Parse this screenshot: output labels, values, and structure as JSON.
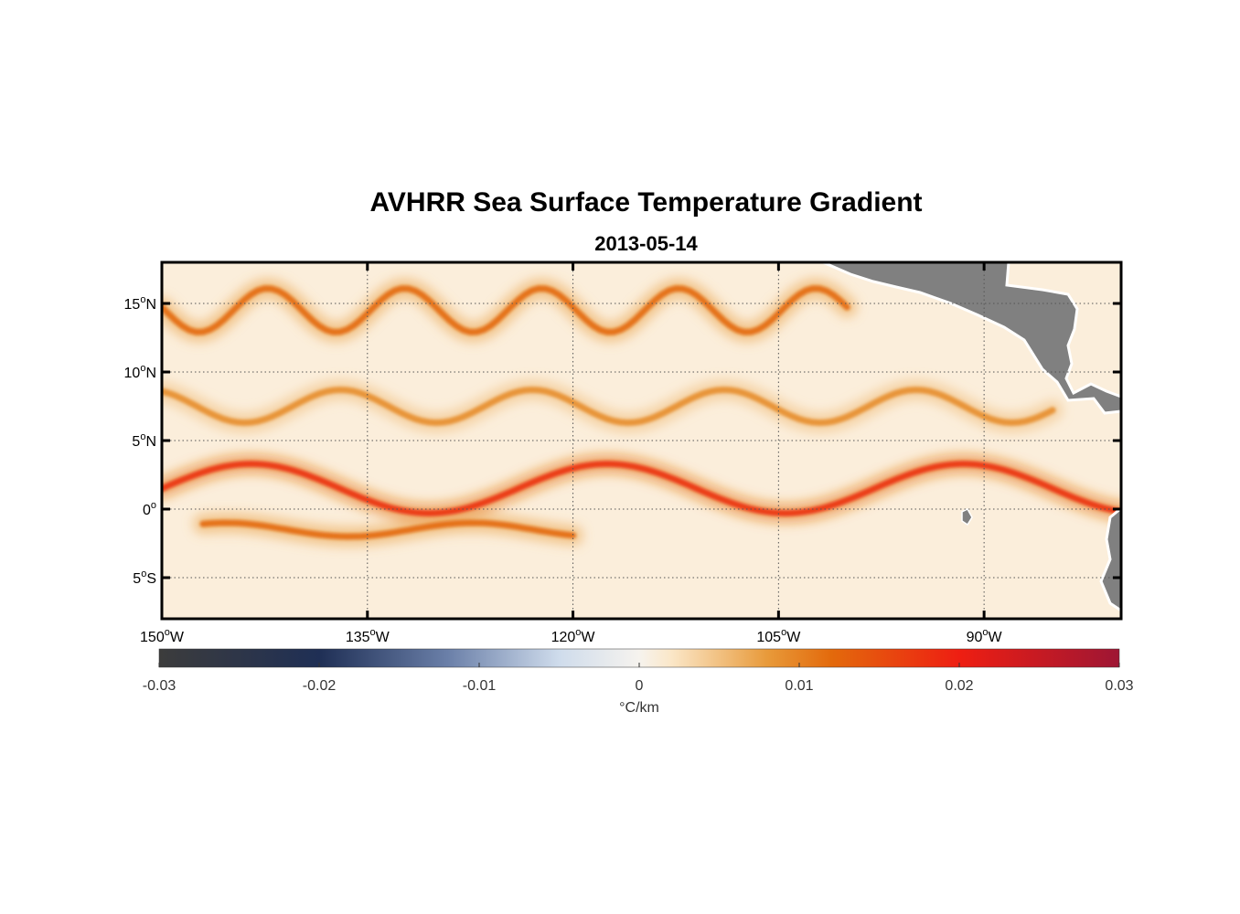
{
  "chart_data": {
    "type": "heatmap",
    "title": "AVHRR Sea Surface Temperature Gradient",
    "subtitle": "2013-05-14",
    "x_ticks": [
      {
        "value": -150,
        "label": "150",
        "suffix": "W"
      },
      {
        "value": -135,
        "label": "135",
        "suffix": "W"
      },
      {
        "value": -120,
        "label": "120",
        "suffix": "W"
      },
      {
        "value": -105,
        "label": "105",
        "suffix": "W"
      },
      {
        "value": -90,
        "label": "90",
        "suffix": "W"
      }
    ],
    "y_ticks": [
      {
        "value": 15,
        "label": "15",
        "suffix": "N"
      },
      {
        "value": 10,
        "label": "10",
        "suffix": "N"
      },
      {
        "value": 5,
        "label": "5",
        "suffix": "N"
      },
      {
        "value": 0,
        "label": "0",
        "suffix": ""
      },
      {
        "value": -5,
        "label": "5",
        "suffix": "S"
      }
    ],
    "xlim": [
      -150,
      -80
    ],
    "ylim": [
      -8,
      18
    ],
    "grid": true,
    "colorbar": {
      "ticks": [
        -0.03,
        -0.02,
        -0.01,
        0,
        0.01,
        0.02,
        0.03
      ],
      "tick_labels": [
        "-0.03",
        "-0.02",
        "-0.01",
        "0",
        "0.01",
        "0.02",
        "0.03"
      ],
      "label": "°C/km",
      "range": [
        -0.03,
        0.03
      ],
      "colors": [
        {
          "v": -0.03,
          "c": "#3c3c3c"
        },
        {
          "v": -0.02,
          "c": "#1f2f55"
        },
        {
          "v": -0.012,
          "c": "#6a7fa8"
        },
        {
          "v": -0.005,
          "c": "#cfdcec"
        },
        {
          "v": 0.0,
          "c": "#f6f3ee"
        },
        {
          "v": 0.002,
          "c": "#fbe7c8"
        },
        {
          "v": 0.008,
          "c": "#e89a3a"
        },
        {
          "v": 0.012,
          "c": "#e36a0c"
        },
        {
          "v": 0.02,
          "c": "#ee1e12"
        },
        {
          "v": 0.03,
          "c": "#9e1634"
        }
      ]
    },
    "land_color": "#808080",
    "fronts": [
      {
        "lat": 1.5,
        "lon_start": -150,
        "lon_end": -80,
        "amplitude": 1.8,
        "wavelength": 26,
        "strength": 0.018
      },
      {
        "lat": -1.5,
        "lon_start": -147,
        "lon_end": -120,
        "amplitude": 0.5,
        "wavelength": 18,
        "strength": 0.012
      },
      {
        "lat": 7.5,
        "lon_start": -150,
        "lon_end": -85,
        "amplitude": 1.2,
        "wavelength": 14,
        "strength": 0.009
      },
      {
        "lat": 14.5,
        "lon_start": -150,
        "lon_end": -100,
        "amplitude": 1.6,
        "wavelength": 10,
        "strength": 0.012
      }
    ]
  }
}
